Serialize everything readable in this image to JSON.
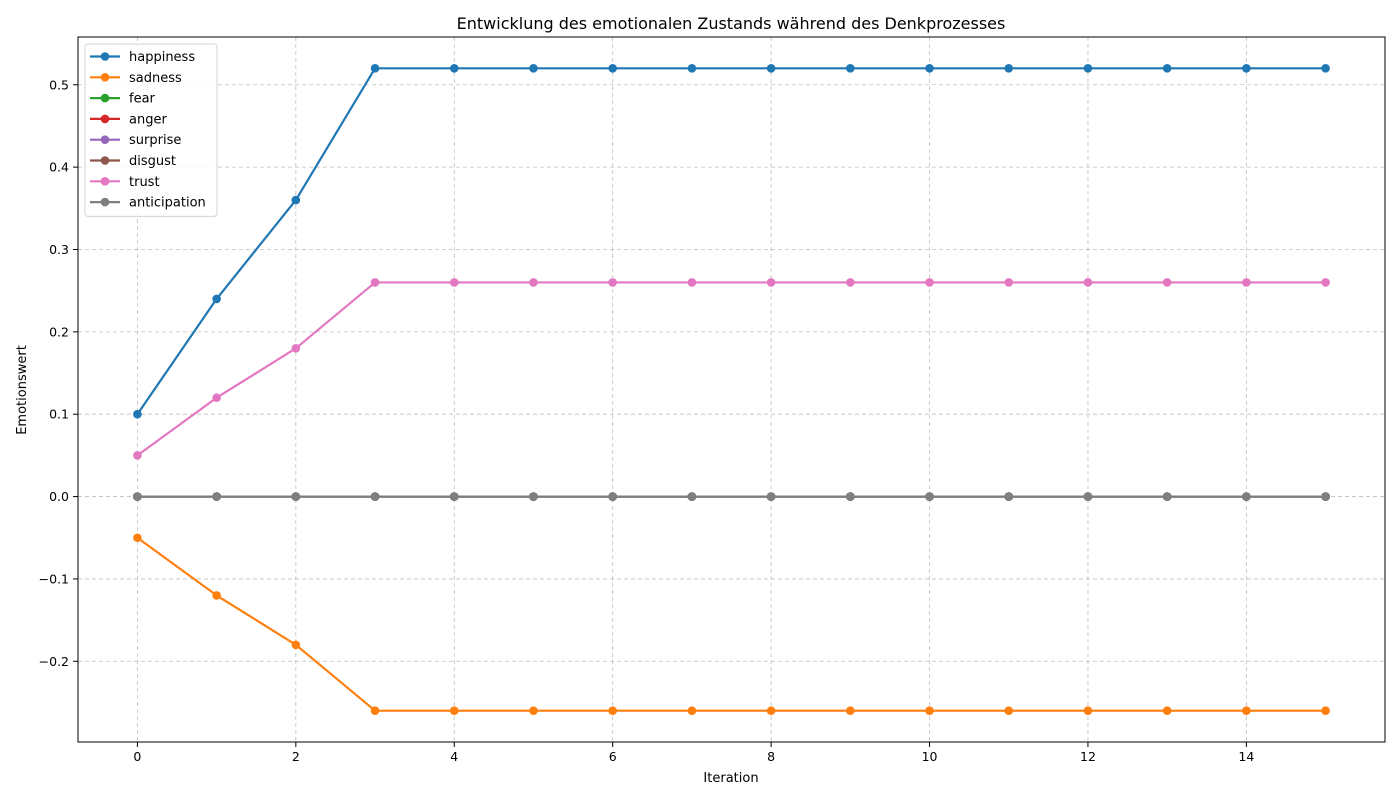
{
  "chart_data": {
    "type": "line",
    "title": "Entwicklung des emotionalen Zustands während des Denkprozesses",
    "xlabel": "Iteration",
    "ylabel": "Emotionswert",
    "x": [
      0,
      1,
      2,
      3,
      4,
      5,
      6,
      7,
      8,
      9,
      10,
      11,
      12,
      13,
      14,
      15
    ],
    "xlim": [
      -0.75,
      15.75
    ],
    "ylim": [
      -0.298,
      0.558
    ],
    "x_ticks": [
      0,
      2,
      4,
      6,
      8,
      10,
      12,
      14
    ],
    "x_tick_labels": [
      "0",
      "2",
      "4",
      "6",
      "8",
      "10",
      "12",
      "14"
    ],
    "y_ticks": [
      -0.2,
      -0.1,
      0.0,
      0.1,
      0.2,
      0.3,
      0.4,
      0.5
    ],
    "y_tick_labels": [
      "−0.2",
      "−0.1",
      "0.0",
      "0.1",
      "0.2",
      "0.3",
      "0.4",
      "0.5"
    ],
    "grid": true,
    "legend_position": "top-left",
    "series": [
      {
        "name": "happiness",
        "color": "#1f77b4",
        "values": [
          0.1,
          0.24,
          0.36,
          0.52,
          0.52,
          0.52,
          0.52,
          0.52,
          0.52,
          0.52,
          0.52,
          0.52,
          0.52,
          0.52,
          0.52,
          0.52
        ]
      },
      {
        "name": "sadness",
        "color": "#ff7f0e",
        "values": [
          -0.05,
          -0.12,
          -0.18,
          -0.26,
          -0.26,
          -0.26,
          -0.26,
          -0.26,
          -0.26,
          -0.26,
          -0.26,
          -0.26,
          -0.26,
          -0.26,
          -0.26,
          -0.26
        ]
      },
      {
        "name": "fear",
        "color": "#2ca02c",
        "values": [
          0,
          0,
          0,
          0,
          0,
          0,
          0,
          0,
          0,
          0,
          0,
          0,
          0,
          0,
          0,
          0
        ]
      },
      {
        "name": "anger",
        "color": "#d62728",
        "values": [
          0,
          0,
          0,
          0,
          0,
          0,
          0,
          0,
          0,
          0,
          0,
          0,
          0,
          0,
          0,
          0
        ]
      },
      {
        "name": "surprise",
        "color": "#9467bd",
        "values": [
          0,
          0,
          0,
          0,
          0,
          0,
          0,
          0,
          0,
          0,
          0,
          0,
          0,
          0,
          0,
          0
        ]
      },
      {
        "name": "disgust",
        "color": "#8c564b",
        "values": [
          0,
          0,
          0,
          0,
          0,
          0,
          0,
          0,
          0,
          0,
          0,
          0,
          0,
          0,
          0,
          0
        ]
      },
      {
        "name": "trust",
        "color": "#e377c2",
        "values": [
          0.05,
          0.12,
          0.18,
          0.26,
          0.26,
          0.26,
          0.26,
          0.26,
          0.26,
          0.26,
          0.26,
          0.26,
          0.26,
          0.26,
          0.26,
          0.26
        ]
      },
      {
        "name": "anticipation",
        "color": "#7f7f7f",
        "values": [
          0,
          0,
          0,
          0,
          0,
          0,
          0,
          0,
          0,
          0,
          0,
          0,
          0,
          0,
          0,
          0
        ]
      }
    ]
  }
}
